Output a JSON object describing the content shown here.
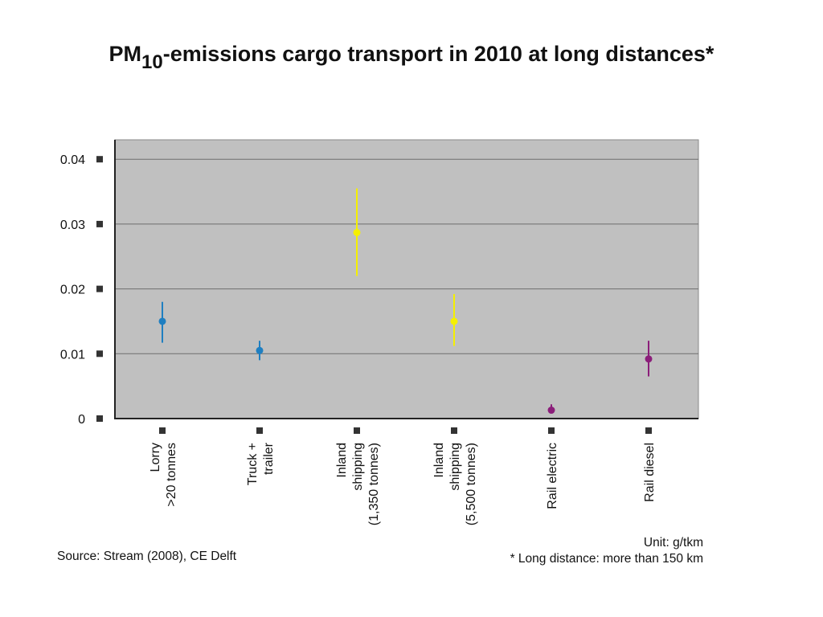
{
  "title": {
    "prefix": "PM",
    "subscript": "10",
    "suffix": "-emissions cargo transport in 2010 at long distances*"
  },
  "footer": {
    "source": "Source: Stream (2008), CE Delft",
    "unit": "Unit: g/tkm",
    "note": "* Long distance: more than 150 km"
  },
  "colors": {
    "plot_bg": "#c0c0c0",
    "grid": "#6e6e6e",
    "road": "#1f7fc1",
    "water": "#f5f000",
    "rail": "#8b1e7a"
  },
  "chart_data": {
    "type": "scatter",
    "ylim": [
      0,
      0.043
    ],
    "yticks": [
      "0",
      "0.01",
      "0.02",
      "0.03",
      "0.04"
    ],
    "ytick_values": [
      0,
      0.01,
      0.02,
      0.03,
      0.04
    ],
    "grid": true,
    "categories": [
      [
        "Lorry",
        ">20 tonnes"
      ],
      [
        "Truck +",
        "trailer"
      ],
      [
        "Inland",
        "shipping",
        "(1,350 tonnes)"
      ],
      [
        "Inland",
        "shipping",
        "(5,500 tonnes)"
      ],
      [
        "Rail electric"
      ],
      [
        "Rail diesel"
      ]
    ],
    "points": [
      {
        "value": 0.015,
        "low": 0.0117,
        "high": 0.018,
        "color": "road"
      },
      {
        "value": 0.0105,
        "low": 0.009,
        "high": 0.012,
        "color": "road"
      },
      {
        "value": 0.0287,
        "low": 0.022,
        "high": 0.0355,
        "color": "water"
      },
      {
        "value": 0.015,
        "low": 0.0112,
        "high": 0.0192,
        "color": "water"
      },
      {
        "value": 0.0013,
        "low": 0.0008,
        "high": 0.0022,
        "color": "rail"
      },
      {
        "value": 0.0092,
        "low": 0.0065,
        "high": 0.012,
        "color": "rail"
      }
    ]
  }
}
